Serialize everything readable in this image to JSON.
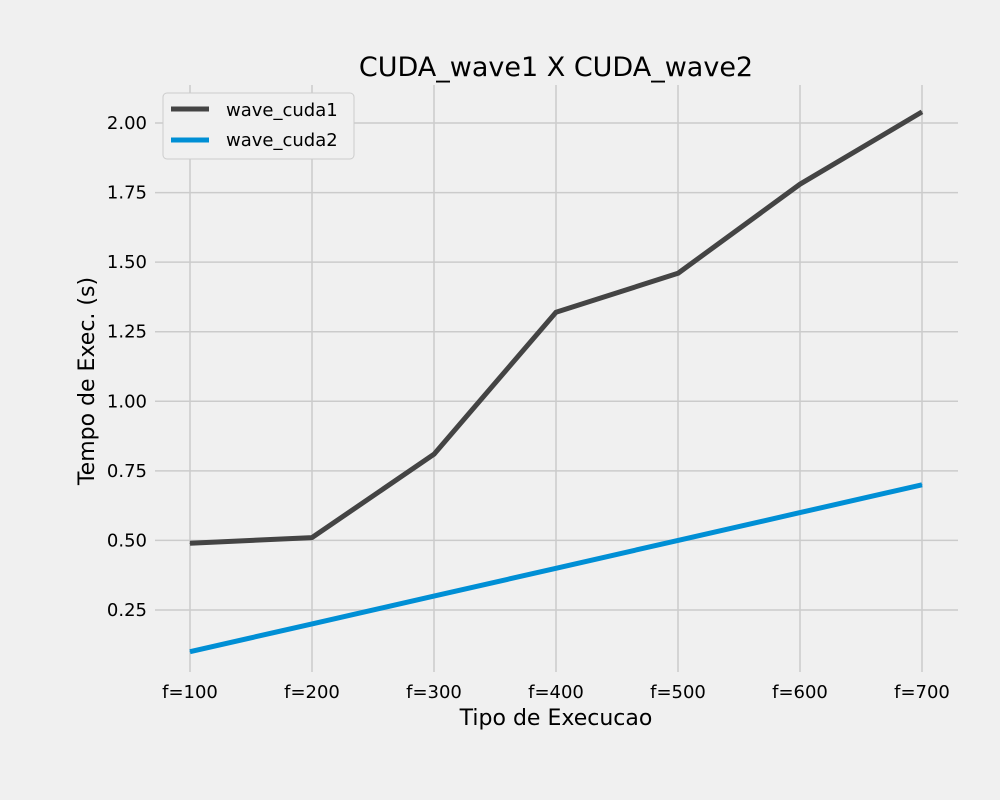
{
  "chart_data": {
    "type": "line",
    "title": "CUDA_wave1 X CUDA_wave2",
    "xlabel": "Tipo de Execucao",
    "ylabel": "Tempo de Exec. (s)",
    "categories": [
      "f=100",
      "f=200",
      "f=300",
      "f=400",
      "f=500",
      "f=600",
      "f=700"
    ],
    "y_ticks": [
      "0.25",
      "0.50",
      "0.75",
      "1.00",
      "1.25",
      "1.50",
      "1.75",
      "2.00"
    ],
    "ylim": [
      0.04,
      2.17
    ],
    "grid": true,
    "legend_position": "top-left",
    "series": [
      {
        "name": "wave_cuda1",
        "color": "#444444",
        "values": [
          0.49,
          0.51,
          0.81,
          1.32,
          1.46,
          1.78,
          2.04
        ]
      },
      {
        "name": "wave_cuda2",
        "color": "#008fd5",
        "values": [
          0.1,
          0.2,
          0.3,
          0.4,
          0.5,
          0.6,
          0.7
        ]
      }
    ]
  }
}
